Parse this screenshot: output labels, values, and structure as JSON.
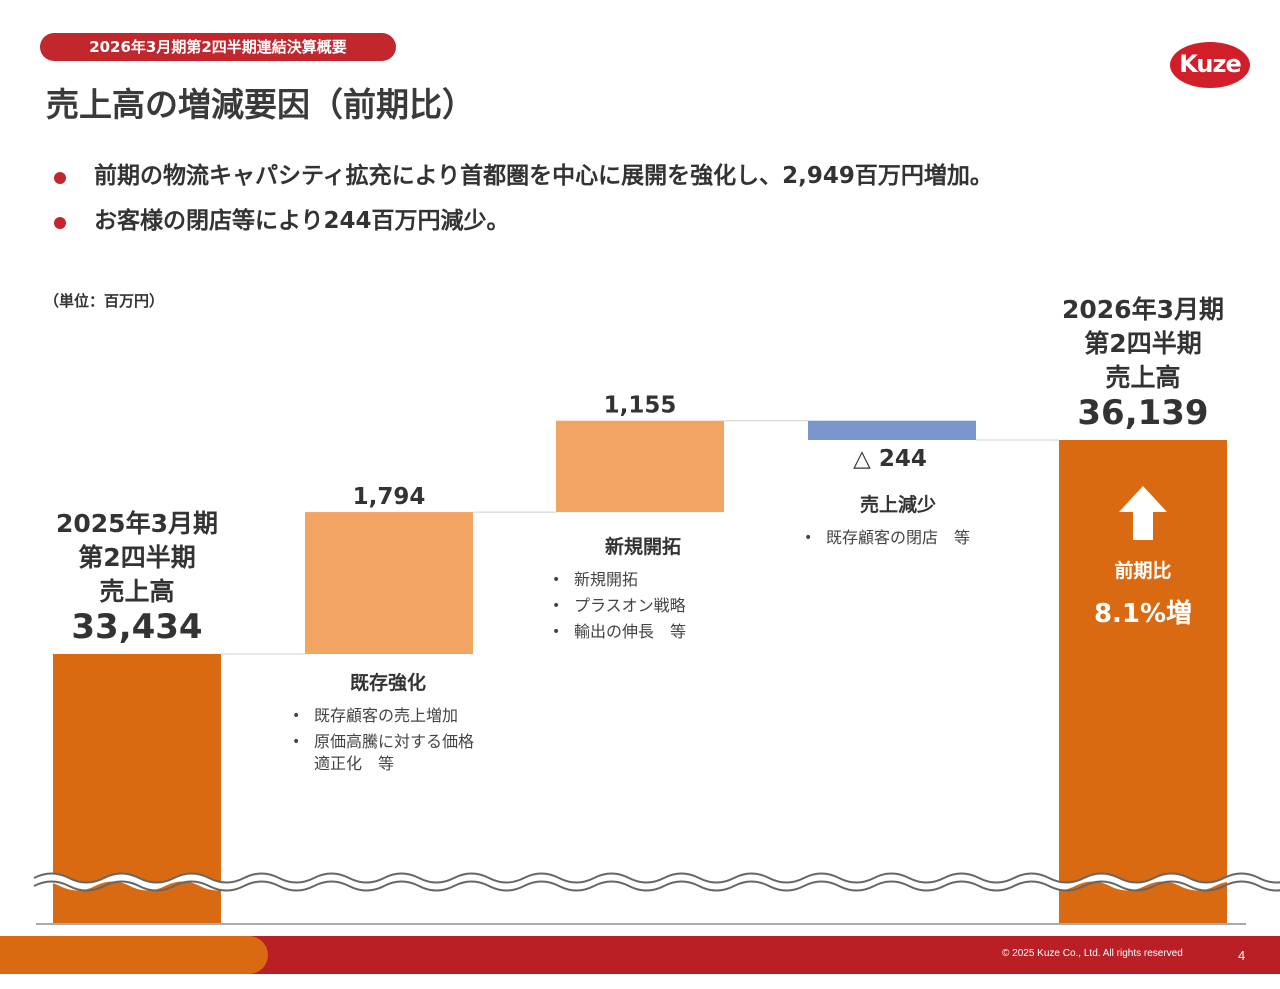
{
  "header": {
    "badge": "2026年3月期第2四半期連結決算概要",
    "logo": "Kuze",
    "title": "売上高の増減要因（前期比）"
  },
  "bullets": [
    "前期の物流キャパシティ拡充により首都圏を中心に展開を強化し、2,949百万円増加。",
    "お客様の閉店等により244百万円減少。"
  ],
  "unit_label": "（単位：百万円）",
  "colors": {
    "total_bar": "#d96a11",
    "increase_bar": "#f2a463",
    "decrease_bar": "#7b96cc",
    "accent_red": "#c1272d"
  },
  "chart_data": {
    "type": "bar",
    "subtype": "waterfall",
    "categories": [
      "2025年3月期 第2四半期 売上高",
      "既存強化",
      "新規開拓",
      "売上減少",
      "2026年3月期 第2四半期 売上高"
    ],
    "steps": [
      {
        "kind": "total",
        "value": 33434,
        "value_label": "33,434",
        "label_lines": [
          "2025年3月期",
          "第2四半期",
          "売上高"
        ]
      },
      {
        "kind": "increase",
        "value": 1794,
        "value_label": "1,794",
        "label": "既存強化",
        "notes": [
          "既存顧客の売上増加",
          "原価高騰に対する価格適正化　等"
        ]
      },
      {
        "kind": "increase",
        "value": 1155,
        "value_label": "1,155",
        "label": "新規開拓",
        "notes": [
          "新規開拓",
          "プラスオン戦略",
          "輸出の伸長　等"
        ]
      },
      {
        "kind": "decrease",
        "value": -244,
        "value_label": "△ 244",
        "label": "売上減少",
        "notes": [
          "既存顧客の閉店　等"
        ]
      },
      {
        "kind": "total",
        "value": 36139,
        "value_label": "36,139",
        "label_lines": [
          "2026年3月期",
          "第2四半期",
          "売上高"
        ],
        "change_label": "前期比",
        "change_value": "8.1%増",
        "arrow_icon": "up-arrow-icon"
      }
    ],
    "axis_break": true,
    "grid": false,
    "legend": "none"
  },
  "footer": {
    "copyright": "© 2025 Kuze Co., Ltd. All rights reserved",
    "page": "4"
  }
}
